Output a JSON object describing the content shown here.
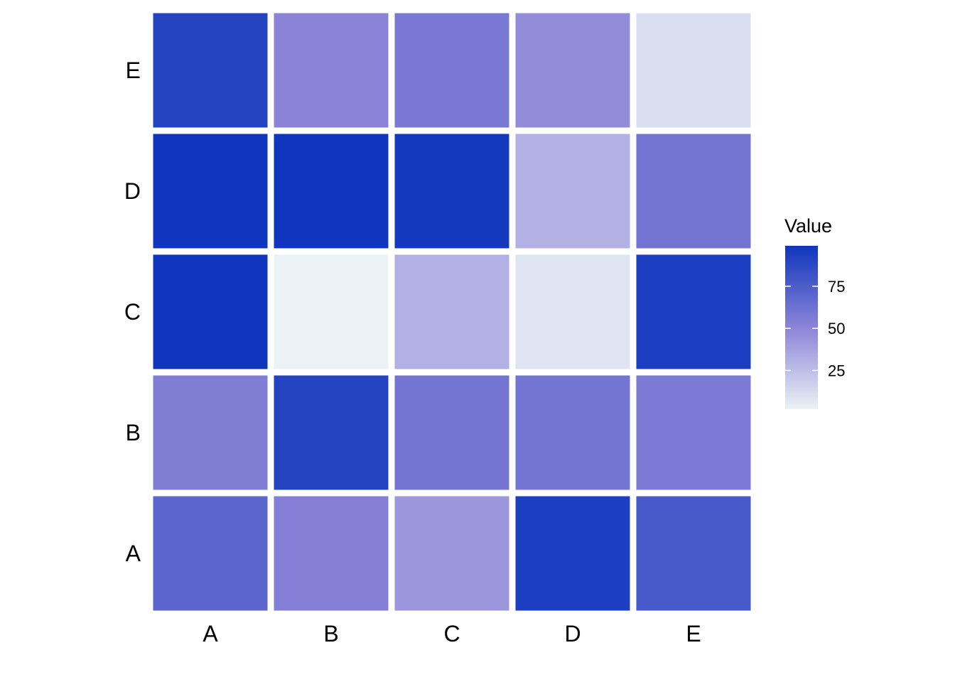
{
  "chart_data": {
    "type": "heatmap",
    "x_categories": [
      "A",
      "B",
      "C",
      "D",
      "E"
    ],
    "y_categories": [
      "A",
      "B",
      "C",
      "D",
      "E"
    ],
    "cells": [
      {
        "x": "A",
        "y": "A",
        "value": 70
      },
      {
        "x": "B",
        "y": "A",
        "value": 54
      },
      {
        "x": "C",
        "y": "A",
        "value": 42
      },
      {
        "x": "D",
        "y": "A",
        "value": 94
      },
      {
        "x": "E",
        "y": "A",
        "value": 77
      },
      {
        "x": "A",
        "y": "B",
        "value": 55
      },
      {
        "x": "B",
        "y": "B",
        "value": 91
      },
      {
        "x": "C",
        "y": "B",
        "value": 60
      },
      {
        "x": "D",
        "y": "B",
        "value": 60
      },
      {
        "x": "E",
        "y": "B",
        "value": 57
      },
      {
        "x": "A",
        "y": "C",
        "value": 99
      },
      {
        "x": "B",
        "y": "C",
        "value": 2
      },
      {
        "x": "C",
        "y": "C",
        "value": 31
      },
      {
        "x": "D",
        "y": "C",
        "value": 8
      },
      {
        "x": "E",
        "y": "C",
        "value": 94
      },
      {
        "x": "A",
        "y": "D",
        "value": 99
      },
      {
        "x": "B",
        "y": "D",
        "value": 99
      },
      {
        "x": "C",
        "y": "D",
        "value": 97
      },
      {
        "x": "D",
        "y": "D",
        "value": 31
      },
      {
        "x": "E",
        "y": "D",
        "value": 60
      },
      {
        "x": "A",
        "y": "E",
        "value": 91
      },
      {
        "x": "B",
        "y": "E",
        "value": 51
      },
      {
        "x": "C",
        "y": "E",
        "value": 58
      },
      {
        "x": "D",
        "y": "E",
        "value": 47
      },
      {
        "x": "E",
        "y": "E",
        "value": 11
      }
    ],
    "legend": {
      "title": "Value",
      "ticks": [
        25,
        50,
        75
      ],
      "range": [
        2,
        99
      ],
      "position": "right"
    },
    "colors": {
      "low": "#eaf2f5",
      "mid": "#8c84d8",
      "high": "#1036bd"
    },
    "grid": false
  }
}
